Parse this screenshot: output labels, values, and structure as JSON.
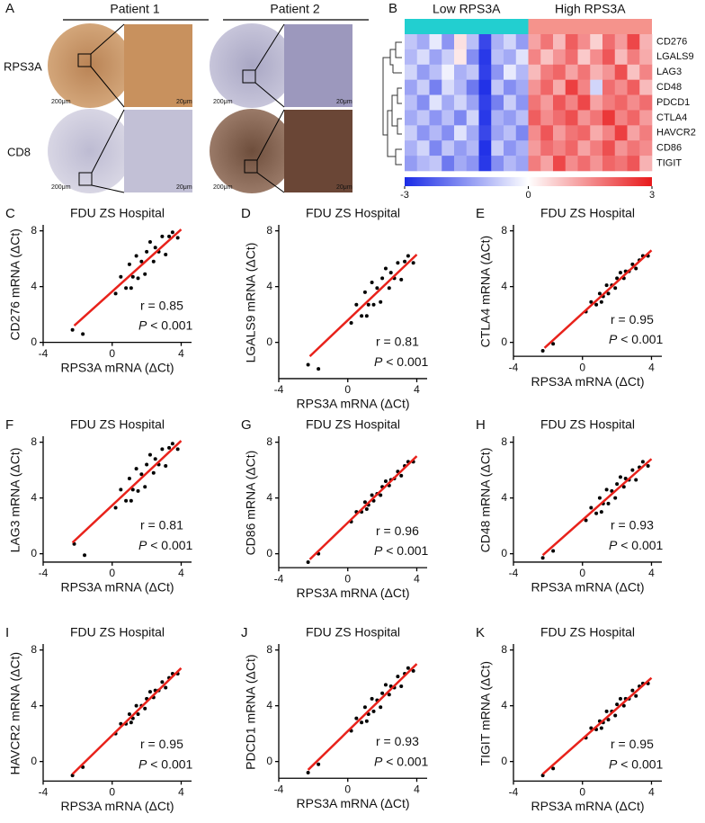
{
  "panel_a": {
    "label": "A",
    "columns": [
      "Patient 1",
      "Patient 2"
    ],
    "rows": [
      "RPS3A",
      "CD8"
    ],
    "scale_low": "200μm",
    "scale_high": "20μm"
  },
  "chart_data": [
    {
      "type": "heatmap",
      "label": "B",
      "groups": [
        {
          "name": "Low RPS3A",
          "color": "#22cfd0"
        },
        {
          "name": "High RPS3A",
          "color": "#f5938c"
        }
      ],
      "rows": [
        "CD276",
        "LGALS9",
        "LAG3",
        "CD48",
        "PDCD1",
        "CTLA4",
        "HAVCR2",
        "CD86",
        "TIGIT"
      ],
      "values": [
        [
          -0.8,
          -1.2,
          -0.3,
          -1.5,
          0.4,
          -0.9,
          -2.6,
          -1.1,
          -0.6,
          -1.4,
          1.2,
          1.8,
          0.9,
          2.1,
          1.5,
          0.6,
          1.9,
          1.3,
          2.4,
          1.0
        ],
        [
          -1.0,
          -0.5,
          -1.3,
          -0.7,
          0.3,
          -1.6,
          -2.8,
          -0.9,
          -1.2,
          -0.4,
          1.6,
          0.8,
          1.4,
          1.9,
          0.7,
          1.5,
          2.2,
          0.9,
          1.7,
          1.1
        ],
        [
          -0.6,
          -1.4,
          -0.9,
          -0.2,
          -1.1,
          -0.8,
          -2.7,
          -1.5,
          -0.3,
          -1.0,
          0.9,
          1.7,
          2.0,
          1.2,
          1.8,
          1.0,
          1.4,
          2.3,
          0.8,
          1.6
        ],
        [
          -1.3,
          -0.7,
          -1.8,
          -0.5,
          -1.0,
          -1.9,
          -2.9,
          -0.8,
          -1.6,
          -1.2,
          1.4,
          2.0,
          1.1,
          2.5,
          1.6,
          -0.6,
          1.9,
          1.5,
          2.1,
          0.9
        ],
        [
          -0.9,
          -1.6,
          -0.4,
          -1.2,
          -0.6,
          -1.3,
          -2.7,
          -1.8,
          -0.7,
          -1.5,
          1.8,
          1.3,
          2.2,
          1.6,
          2.4,
          1.2,
          1.7,
          2.0,
          1.5,
          1.9
        ],
        [
          -1.2,
          -0.8,
          -1.5,
          -0.9,
          -1.7,
          -0.6,
          -2.8,
          -1.1,
          -1.4,
          -0.9,
          2.1,
          1.5,
          1.9,
          2.3,
          1.4,
          1.8,
          2.6,
          1.6,
          2.0,
          1.3
        ],
        [
          -0.7,
          -1.5,
          -1.0,
          -1.6,
          -0.4,
          -1.2,
          -2.6,
          -1.3,
          -0.9,
          -1.7,
          1.5,
          2.2,
          1.3,
          1.8,
          2.0,
          1.1,
          1.6,
          2.5,
          1.2,
          1.7
        ],
        [
          -1.1,
          -0.6,
          -1.7,
          -0.8,
          -1.4,
          -1.0,
          -2.9,
          -0.7,
          -1.5,
          -1.1,
          1.3,
          1.9,
          1.6,
          2.0,
          1.2,
          1.7,
          2.3,
          1.4,
          1.8,
          1.5
        ],
        [
          -1.4,
          -1.0,
          -0.8,
          -1.9,
          -1.2,
          -1.5,
          -2.8,
          -1.6,
          -1.0,
          -1.3,
          1.7,
          1.2,
          2.4,
          1.5,
          1.9,
          1.4,
          2.0,
          1.8,
          2.2,
          1.0
        ]
      ],
      "clim": [
        -3,
        3
      ],
      "cticks": [
        -3,
        0,
        3
      ],
      "low_color": "#1a2be6",
      "mid_color": "#ffffff",
      "high_color": "#e8191b"
    },
    {
      "type": "scatter",
      "label": "C",
      "title": "FDU ZS Hospital",
      "x_label": "RPS3A mRNA (ΔCt)",
      "y_label": "CD276 mRNA (ΔCt)",
      "color": "#000000",
      "x": [
        -2.3,
        -1.7,
        0.2,
        0.5,
        0.8,
        1.0,
        1.2,
        1.4,
        1.5,
        1.7,
        1.9,
        2.0,
        2.2,
        2.4,
        2.5,
        2.7,
        2.9,
        3.1,
        3.3,
        3.5,
        3.8,
        1.1
      ],
      "y": [
        0.9,
        0.6,
        3.5,
        4.7,
        3.9,
        5.6,
        4.7,
        6.2,
        4.6,
        5.8,
        4.9,
        6.5,
        7.2,
        5.8,
        6.8,
        6.5,
        7.6,
        6.3,
        7.6,
        7.9,
        7.5,
        3.9
      ],
      "fit": {
        "x": [
          -2.2,
          4
        ],
        "y": [
          1.2,
          8.1
        ],
        "color": "#e8221b"
      },
      "annotation": {
        "r": "r = 0.85",
        "p_symbol": "P",
        "p_text": " < 0.001"
      },
      "xlim": [
        -4,
        4.6
      ],
      "ylim": [
        0,
        8.3
      ],
      "xticks": [
        -4,
        0,
        4
      ],
      "yticks": [
        0,
        4,
        8
      ]
    },
    {
      "type": "scatter",
      "label": "D",
      "title": "FDU ZS Hospital",
      "x_label": "RPS3A mRNA (ΔCt)",
      "y_label": "LGALS9 mRNA (ΔCt)",
      "color": "#000000",
      "x": [
        -2.3,
        -1.7,
        0.2,
        0.5,
        0.8,
        1.0,
        1.2,
        1.4,
        1.5,
        1.7,
        1.9,
        2.0,
        2.2,
        2.4,
        2.5,
        2.7,
        2.9,
        3.1,
        3.3,
        3.5,
        3.8,
        1.1
      ],
      "y": [
        -1.6,
        -1.9,
        1.4,
        2.7,
        1.9,
        3.6,
        2.7,
        4.3,
        2.7,
        3.9,
        2.9,
        4.6,
        5.3,
        3.9,
        5.0,
        4.6,
        5.7,
        4.5,
        5.8,
        6.2,
        5.7,
        1.9
      ],
      "fit": {
        "x": [
          -2.2,
          4
        ],
        "y": [
          -1,
          6.3
        ],
        "color": "#e8221b"
      },
      "annotation": {
        "r": "r = 0.81",
        "p_symbol": "P",
        "p_text": " < 0.001"
      },
      "xlim": [
        -4,
        4.6
      ],
      "ylim": [
        -2.6,
        8.3
      ],
      "xticks": [
        -4,
        0,
        4
      ],
      "yticks": [
        0,
        4,
        8
      ]
    },
    {
      "type": "scatter",
      "label": "E",
      "title": "FDU ZS Hospital",
      "x_label": "RPS3A mRNA (ΔCt)",
      "y_label": "CTLA4 mRNA (ΔCt)",
      "color": "#000000",
      "x": [
        -2.3,
        -1.7,
        0.2,
        0.5,
        0.8,
        1.0,
        1.2,
        1.4,
        1.5,
        1.7,
        1.9,
        2.0,
        2.2,
        2.4,
        2.5,
        2.7,
        2.9,
        3.1,
        3.3,
        3.5,
        3.8,
        1.1
      ],
      "y": [
        -0.6,
        -0.1,
        2.2,
        2.9,
        2.7,
        3.5,
        3.3,
        4.1,
        3.5,
        4.1,
        3.9,
        4.6,
        5.0,
        4.6,
        5.1,
        5.1,
        5.6,
        5.3,
        5.9,
        6.2,
        6.2,
        2.9
      ],
      "fit": {
        "x": [
          -2.2,
          4
        ],
        "y": [
          -0.4,
          6.6
        ],
        "color": "#e8221b"
      },
      "annotation": {
        "r": "r = 0.95",
        "p_symbol": "P",
        "p_text": " < 0.001"
      },
      "xlim": [
        -4,
        4.6
      ],
      "ylim": [
        -1,
        8.3
      ],
      "xticks": [
        -4,
        0,
        4
      ],
      "yticks": [
        0,
        4,
        8
      ]
    },
    {
      "type": "scatter",
      "label": "F",
      "title": "FDU ZS Hospital",
      "x_label": "RPS3A mRNA (ΔCt)",
      "y_label": "LAG3 mRNA (ΔCt)",
      "color": "#000000",
      "x": [
        -2.2,
        -1.6,
        0.2,
        0.5,
        0.8,
        1.0,
        1.2,
        1.4,
        1.5,
        1.7,
        1.9,
        2.0,
        2.2,
        2.4,
        2.5,
        2.7,
        2.9,
        3.1,
        3.3,
        3.5,
        3.8,
        1.1
      ],
      "y": [
        0.7,
        -0.1,
        3.3,
        4.6,
        3.8,
        5.4,
        4.6,
        6.1,
        4.5,
        5.7,
        4.8,
        6.4,
        7.1,
        5.8,
        6.8,
        6.4,
        7.5,
        6.3,
        7.6,
        7.9,
        7.5,
        3.8
      ],
      "fit": {
        "x": [
          -2.3,
          4
        ],
        "y": [
          0.8,
          8.1
        ],
        "color": "#e8221b"
      },
      "annotation": {
        "r": "r = 0.81",
        "p_symbol": "P",
        "p_text": " < 0.001"
      },
      "xlim": [
        -4,
        4.6
      ],
      "ylim": [
        -0.6,
        8.3
      ],
      "xticks": [
        -4,
        0,
        4
      ],
      "yticks": [
        0,
        4,
        8
      ]
    },
    {
      "type": "scatter",
      "label": "G",
      "title": "FDU ZS Hospital",
      "x_label": "RPS3A mRNA (ΔCt)",
      "y_label": "CD86 mRNA (ΔCt)",
      "color": "#000000",
      "x": [
        -2.3,
        -1.7,
        0.2,
        0.5,
        0.8,
        1.0,
        1.2,
        1.4,
        1.5,
        1.7,
        1.9,
        2.0,
        2.2,
        2.4,
        2.5,
        2.7,
        2.9,
        3.1,
        3.3,
        3.5,
        3.8,
        1.1
      ],
      "y": [
        -0.6,
        0.0,
        2.3,
        3.0,
        3.0,
        3.7,
        3.5,
        4.2,
        3.8,
        4.3,
        4.2,
        4.8,
        5.2,
        4.9,
        5.3,
        5.4,
        5.9,
        5.6,
        6.3,
        6.6,
        6.6,
        3.2
      ],
      "fit": {
        "x": [
          -2.2,
          4
        ],
        "y": [
          -0.4,
          7
        ],
        "color": "#e8221b"
      },
      "annotation": {
        "r": "r = 0.96",
        "p_symbol": "P",
        "p_text": " < 0.001"
      },
      "xlim": [
        -4,
        4.6
      ],
      "ylim": [
        -1,
        8.3
      ],
      "xticks": [
        -4,
        0,
        4
      ],
      "yticks": [
        0,
        4,
        8
      ]
    },
    {
      "type": "scatter",
      "label": "H",
      "title": "FDU ZS Hospital",
      "x_label": "RPS3A mRNA (ΔCt)",
      "y_label": "CD48 mRNA (ΔCt)",
      "color": "#000000",
      "x": [
        -2.3,
        -1.7,
        0.2,
        0.5,
        0.8,
        1.0,
        1.2,
        1.4,
        1.5,
        1.7,
        1.9,
        2.0,
        2.2,
        2.4,
        2.5,
        2.7,
        2.9,
        3.1,
        3.3,
        3.5,
        3.8,
        1.1
      ],
      "y": [
        -0.3,
        0.2,
        2.4,
        3.3,
        2.9,
        4.0,
        3.6,
        4.6,
        3.6,
        4.5,
        4.0,
        5.0,
        5.5,
        4.8,
        5.4,
        5.3,
        6.0,
        5.3,
        6.2,
        6.6,
        6.3,
        3.0
      ],
      "fit": {
        "x": [
          -2.3,
          4
        ],
        "y": [
          -0.1,
          6.8
        ],
        "color": "#e8221b"
      },
      "annotation": {
        "r": "r = 0.93",
        "p_symbol": "P",
        "p_text": " < 0.001"
      },
      "xlim": [
        -4,
        4.6
      ],
      "ylim": [
        -0.6,
        8.3
      ],
      "xticks": [
        -4,
        0,
        4
      ],
      "yticks": [
        0,
        4,
        8
      ]
    },
    {
      "type": "scatter",
      "label": "I",
      "title": "FDU ZS Hospital",
      "x_label": "RPS3A mRNA (ΔCt)",
      "y_label": "HAVCR2 mRNA (ΔCt)",
      "color": "#000000",
      "x": [
        -2.3,
        -1.7,
        0.2,
        0.5,
        0.8,
        1.0,
        1.2,
        1.4,
        1.5,
        1.7,
        1.9,
        2.0,
        2.2,
        2.4,
        2.5,
        2.7,
        2.9,
        3.1,
        3.3,
        3.5,
        3.8,
        1.1
      ],
      "y": [
        -1.0,
        -0.4,
        2.0,
        2.7,
        2.7,
        3.4,
        3.1,
        4.0,
        3.4,
        4.0,
        3.8,
        4.5,
        5.0,
        4.6,
        5.1,
        5.1,
        5.7,
        5.3,
        6.0,
        6.3,
        6.3,
        2.8
      ],
      "fit": {
        "x": [
          -2.3,
          4
        ],
        "y": [
          -0.9,
          6.7
        ],
        "color": "#e8221b"
      },
      "annotation": {
        "r": "r = 0.95",
        "p_symbol": "P",
        "p_text": " < 0.001"
      },
      "xlim": [
        -4,
        4.6
      ],
      "ylim": [
        -1.4,
        8.3
      ],
      "xticks": [
        -4,
        0,
        4
      ],
      "yticks": [
        0,
        4,
        8
      ]
    },
    {
      "type": "scatter",
      "label": "J",
      "title": "FDU ZS Hospital",
      "x_label": "RPS3A mRNA (ΔCt)",
      "y_label": "PDCD1 mRNA (ΔCt)",
      "color": "#000000",
      "x": [
        -2.3,
        -1.7,
        0.2,
        0.5,
        0.8,
        1.0,
        1.2,
        1.4,
        1.5,
        1.7,
        1.9,
        2.0,
        2.2,
        2.4,
        2.5,
        2.7,
        2.9,
        3.1,
        3.3,
        3.5,
        3.8,
        1.1
      ],
      "y": [
        -0.8,
        -0.2,
        2.2,
        3.1,
        2.8,
        3.9,
        3.4,
        4.5,
        3.6,
        4.4,
        3.9,
        4.9,
        5.5,
        4.8,
        5.4,
        5.3,
        6.1,
        5.4,
        6.3,
        6.7,
        6.5,
        2.9
      ],
      "fit": {
        "x": [
          -2.3,
          4
        ],
        "y": [
          -0.6,
          7
        ],
        "color": "#e8221b"
      },
      "annotation": {
        "r": "r = 0.93",
        "p_symbol": "P",
        "p_text": " < 0.001"
      },
      "xlim": [
        -4,
        4.6
      ],
      "ylim": [
        -1.2,
        8.3
      ],
      "xticks": [
        -4,
        0,
        4
      ],
      "yticks": [
        0,
        4,
        8
      ]
    },
    {
      "type": "scatter",
      "label": "K",
      "title": "FDU ZS Hospital",
      "x_label": "RPS3A mRNA (ΔCt)",
      "y_label": "TIGIT mRNA (ΔCt)",
      "color": "#000000",
      "x": [
        -2.3,
        -1.7,
        0.2,
        0.5,
        0.8,
        1.0,
        1.2,
        1.4,
        1.5,
        1.7,
        1.9,
        2.0,
        2.2,
        2.4,
        2.5,
        2.7,
        2.9,
        3.1,
        3.3,
        3.5,
        3.8,
        1.1
      ],
      "y": [
        -1.0,
        -0.5,
        1.7,
        2.4,
        2.3,
        2.9,
        2.8,
        3.6,
        3.0,
        3.6,
        3.3,
        4.1,
        4.5,
        4.0,
        4.5,
        4.5,
        5.1,
        4.7,
        5.4,
        5.6,
        5.6,
        2.4
      ],
      "fit": {
        "x": [
          -2.3,
          4
        ],
        "y": [
          -0.9,
          6
        ],
        "color": "#e8221b"
      },
      "annotation": {
        "r": "r = 0.95",
        "p_symbol": "P",
        "p_text": " < 0.001"
      },
      "xlim": [
        -4,
        4.6
      ],
      "ylim": [
        -1.4,
        8.3
      ],
      "xticks": [
        -4,
        0,
        4
      ],
      "yticks": [
        0,
        4,
        8
      ]
    }
  ]
}
